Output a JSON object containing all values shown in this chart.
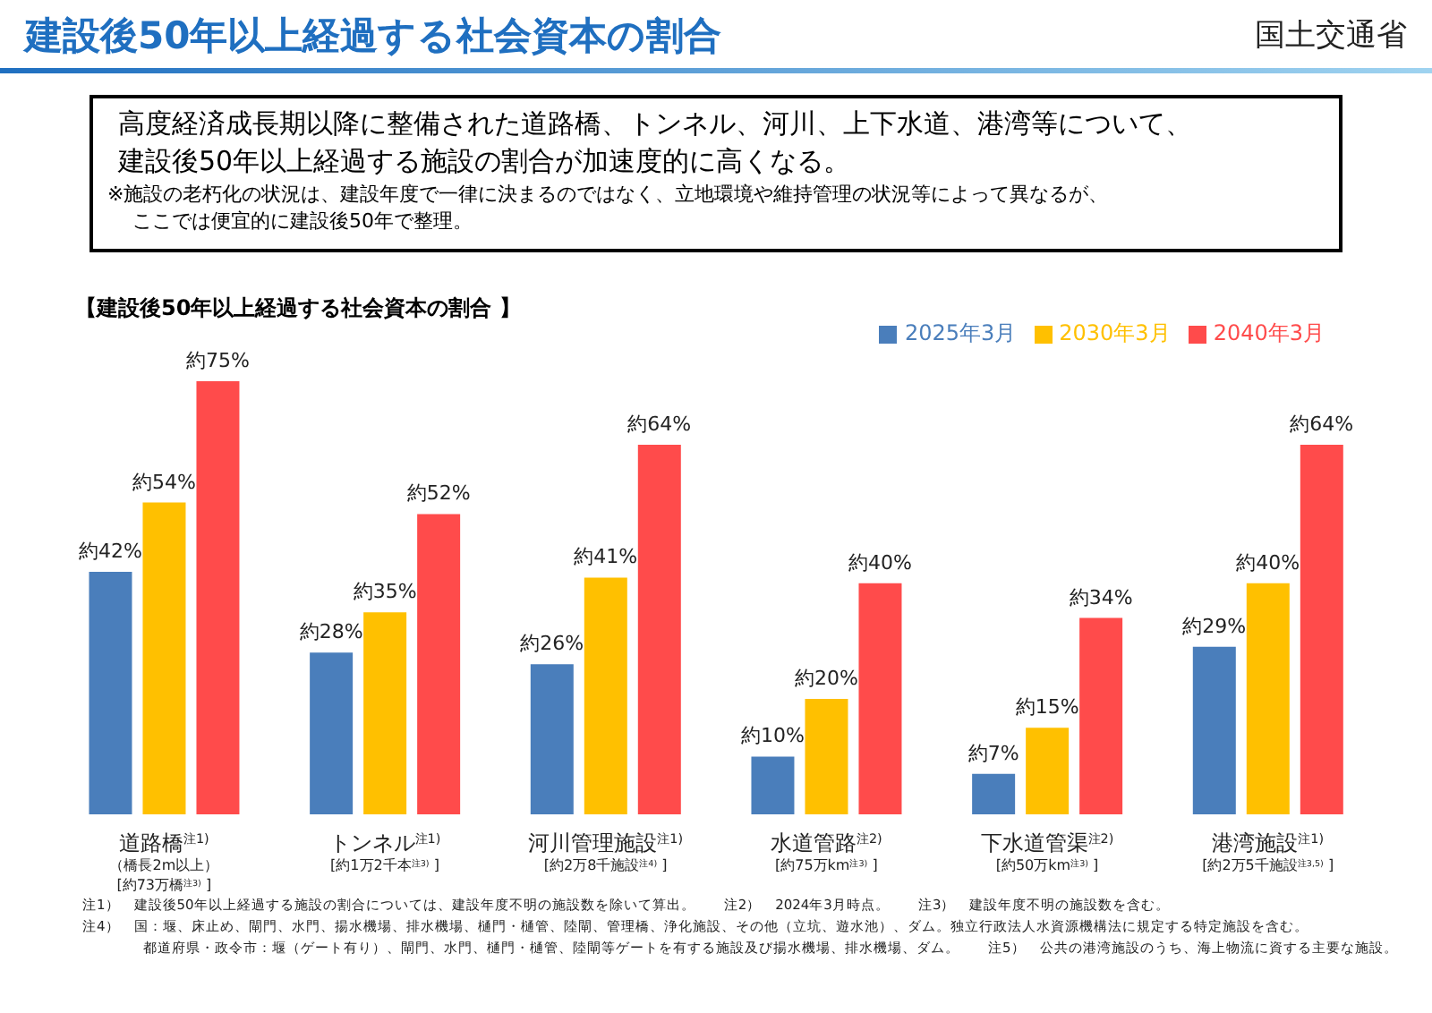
{
  "chart_data": {
    "type": "bar",
    "title": "建設後50年以上経過する社会資本の割合",
    "subtitle": "【建設後50年以上経過する社会資本の割合 】",
    "annotations": [
      "国土交通省",
      "高度経済成長期以降に整備された道路橋、トンネル、河川、上下水道、港湾等について、",
      "建設後50年以上経過する施設の割合が加速度的に高くなる。",
      "※施設の老朽化の状況は、建設年度で一律に決まるのではなく、立地環境や維持管理の状況等によって異なるが、",
      "ここでは便宜的に建設後50年で整理。",
      "注1）　建設後50年以上経過する施設の割合については、建設年度不明の施設数を除いて算出。　　注2）　2024年3月時点。　　注3）　建設年度不明の施設数を含む。",
      "注4）　国：堰、床止め、閘門、水門、揚水機場、排水機場、樋門・樋管、陸閘、管理橋、浄化施設、その他（立坑、遊水池）、ダム。独立行政法人水資源機構法に規定する特定施設を含む。",
      "都道府県・政令市：堰（ゲート有り）、閘門、水門、樋門・樋管、陸閘等ゲートを有する施設及び揚水機場、排水機場、ダム。　　注5）　公共の港湾施設のうち、海上物流に資する主要な施設。"
    ],
    "categories": [
      "道路橋$^{注1)}$\n（橋長2m以上）\n[約73万橋$^{注3)}$ ]",
      "トンネル$^{注1)}$\n[約1万2千本$^{注3)}$ ]",
      "河川管理施設$^{注1)}$\n[約2万8千施設$^{注4)}$ ]",
      "水道管路$^{注2)}$\n[約75万km$^{注3)}$ ]",
      "下水道管渠$^{注2)}$\n[約50万km$^{注3)}$ ]",
      "港湾施設$^{注1)}$\n[約2万5千施設$^{注3,5)}$ ]"
    ],
    "series": [
      {
        "name": "2025年3月",
        "color": "#4a7ebb",
        "values": [
          42,
          28,
          26,
          10,
          7,
          29
        ],
        "value_labels": [
          "約42%",
          "約28%",
          "約26%",
          "約10%",
          "約7%",
          "約29%"
        ]
      },
      {
        "name": "2030年3月",
        "color": "#ffc000",
        "values": [
          54,
          35,
          41,
          20,
          15,
          40
        ],
        "value_labels": [
          "約54%",
          "約35%",
          "約41%",
          "約20%",
          "約15%",
          "約40%"
        ]
      },
      {
        "name": "2040年3月",
        "color": "#ff4b4b",
        "values": [
          75,
          52,
          64,
          40,
          34,
          64
        ],
        "value_labels": [
          "約75%",
          "約52%",
          "約64%",
          "約40%",
          "約34%",
          "約64%"
        ]
      }
    ],
    "legend": "top right",
    "grid": false
  }
}
